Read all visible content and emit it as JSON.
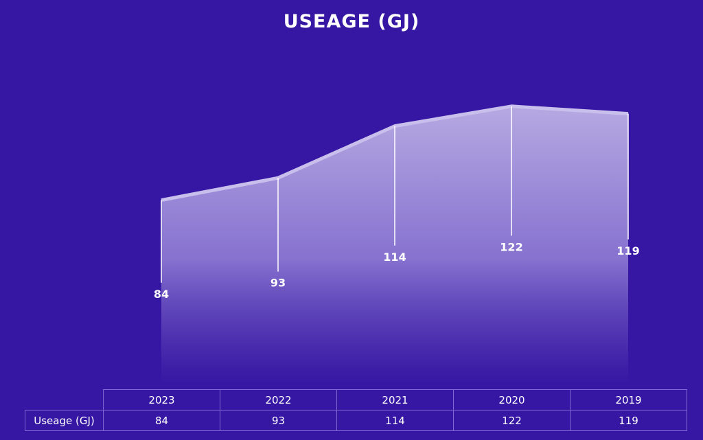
{
  "chart_data": {
    "type": "area",
    "title": "USEAGE (GJ)",
    "categories": [
      "2023",
      "2022",
      "2021",
      "2020",
      "2019"
    ],
    "series": [
      {
        "name": "Useage (GJ)",
        "values": [
          84,
          93,
          114,
          122,
          119
        ]
      }
    ],
    "data_labels": [
      "84",
      "93",
      "114",
      "122",
      "119"
    ],
    "ylim": [
      0,
      130
    ],
    "grid": false,
    "legend": "none",
    "colors": {
      "background": "#3617a3",
      "area_top": "#b1a3de",
      "line": "#c9bfec",
      "text": "#ffffff",
      "table_border": "#7f67d6"
    }
  },
  "table": {
    "row_header": "Useage (GJ)",
    "columns": [
      "2023",
      "2022",
      "2021",
      "2020",
      "2019"
    ],
    "values": [
      "84",
      "93",
      "114",
      "122",
      "119"
    ]
  }
}
